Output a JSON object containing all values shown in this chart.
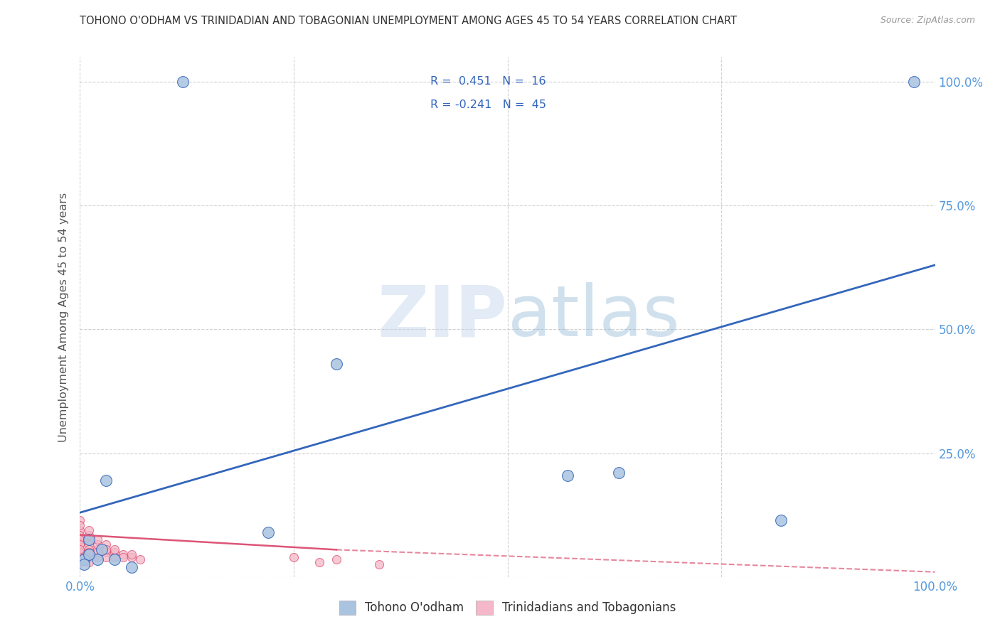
{
  "title": "TOHONO O'ODHAM VS TRINIDADIAN AND TOBAGONIAN UNEMPLOYMENT AMONG AGES 45 TO 54 YEARS CORRELATION CHART",
  "source": "Source: ZipAtlas.com",
  "ylabel": "Unemployment Among Ages 45 to 54 years",
  "xlim": [
    0,
    1.0
  ],
  "ylim": [
    0,
    1.05
  ],
  "blue_color": "#aac4e0",
  "pink_color": "#f4b8c8",
  "blue_line_color": "#3366bb",
  "pink_line_color": "#dd5577",
  "legend_blue_label": "Tohono O'odham",
  "legend_pink_label": "Trinidadians and Tobagonians",
  "R_blue": 0.451,
  "N_blue": 16,
  "R_pink": -0.241,
  "N_pink": 45,
  "watermark_zip": "ZIP",
  "watermark_atlas": "atlas",
  "background_color": "#ffffff",
  "grid_color": "#cccccc",
  "title_color": "#333333",
  "axis_label_color": "#555555",
  "tick_color": "#5599dd",
  "blue_points": [
    [
      0.03,
      0.195
    ],
    [
      0.12,
      1.0
    ],
    [
      0.3,
      0.43
    ],
    [
      0.57,
      0.205
    ],
    [
      0.63,
      0.21
    ],
    [
      0.82,
      0.115
    ],
    [
      0.975,
      1.0
    ],
    [
      0.02,
      0.035
    ],
    [
      0.22,
      0.09
    ],
    [
      0.06,
      0.02
    ],
    [
      0.005,
      0.035
    ],
    [
      0.01,
      0.045
    ],
    [
      0.005,
      0.025
    ],
    [
      0.01,
      0.075
    ],
    [
      0.025,
      0.055
    ],
    [
      0.04,
      0.035
    ]
  ],
  "pink_points": [
    [
      0.0,
      0.115
    ],
    [
      0.0,
      0.075
    ],
    [
      0.0,
      0.05
    ],
    [
      0.0,
      0.04
    ],
    [
      0.0,
      0.065
    ],
    [
      0.0,
      0.095
    ],
    [
      0.0,
      0.055
    ],
    [
      0.0,
      0.085
    ],
    [
      0.0,
      0.03
    ],
    [
      0.0,
      0.105
    ],
    [
      0.0,
      0.075
    ],
    [
      0.0,
      0.05
    ],
    [
      0.0,
      0.04
    ],
    [
      0.0,
      0.065
    ],
    [
      0.0,
      0.055
    ],
    [
      0.01,
      0.075
    ],
    [
      0.01,
      0.05
    ],
    [
      0.01,
      0.065
    ],
    [
      0.01,
      0.04
    ],
    [
      0.01,
      0.085
    ],
    [
      0.01,
      0.055
    ],
    [
      0.01,
      0.03
    ],
    [
      0.01,
      0.095
    ],
    [
      0.01,
      0.05
    ],
    [
      0.02,
      0.055
    ],
    [
      0.02,
      0.04
    ],
    [
      0.02,
      0.065
    ],
    [
      0.02,
      0.075
    ],
    [
      0.02,
      0.05
    ],
    [
      0.03,
      0.05
    ],
    [
      0.03,
      0.065
    ],
    [
      0.03,
      0.04
    ],
    [
      0.03,
      0.055
    ],
    [
      0.04,
      0.05
    ],
    [
      0.04,
      0.04
    ],
    [
      0.04,
      0.055
    ],
    [
      0.05,
      0.045
    ],
    [
      0.05,
      0.04
    ],
    [
      0.06,
      0.04
    ],
    [
      0.06,
      0.045
    ],
    [
      0.07,
      0.035
    ],
    [
      0.25,
      0.04
    ],
    [
      0.28,
      0.03
    ],
    [
      0.3,
      0.035
    ],
    [
      0.35,
      0.025
    ]
  ],
  "blue_trend": [
    0.0,
    1.0,
    0.13,
    0.63
  ],
  "pink_trend_solid": [
    0.0,
    0.085,
    0.3,
    0.055
  ],
  "pink_trend_dashed": [
    0.3,
    0.055,
    1.0,
    0.01
  ],
  "marker_size_blue": 130,
  "marker_size_pink": 75
}
